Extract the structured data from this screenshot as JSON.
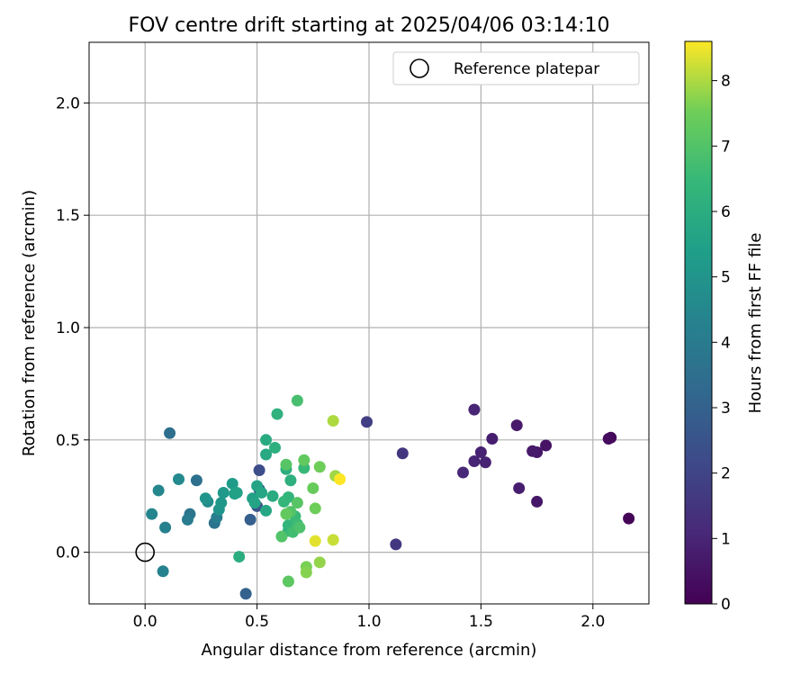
{
  "chart_data": {
    "type": "scatter",
    "title": "FOV centre drift starting at 2025/04/06 03:14:10",
    "xlabel": "Angular distance from reference (arcmin)",
    "ylabel": "Rotation from reference (arcmin)",
    "xlim": [
      -0.25,
      2.25
    ],
    "ylim": [
      -0.23,
      2.27
    ],
    "xticks": [
      {
        "value": 0.0,
        "label": "0.0"
      },
      {
        "value": 0.5,
        "label": "0.5"
      },
      {
        "value": 1.0,
        "label": "1.0"
      },
      {
        "value": 1.5,
        "label": "1.5"
      },
      {
        "value": 2.0,
        "label": "2.0"
      }
    ],
    "yticks": [
      {
        "value": 0.0,
        "label": "0.0"
      },
      {
        "value": 0.5,
        "label": "0.5"
      },
      {
        "value": 1.0,
        "label": "1.0"
      },
      {
        "value": 1.5,
        "label": "1.5"
      },
      {
        "value": 2.0,
        "label": "2.0"
      }
    ],
    "grid": true,
    "legend": {
      "position": "top-right",
      "entries": [
        {
          "label": "Reference platepar",
          "marker": "open-circle"
        }
      ]
    },
    "reference_point": {
      "x": 0.0,
      "y": 0.0
    },
    "colorbar": {
      "label": "Hours from first FF file",
      "colormap": "viridis",
      "range": [
        0,
        8.6
      ],
      "ticks": [
        {
          "value": 0,
          "label": "0"
        },
        {
          "value": 1,
          "label": "1"
        },
        {
          "value": 2,
          "label": "2"
        },
        {
          "value": 3,
          "label": "3"
        },
        {
          "value": 4,
          "label": "4"
        },
        {
          "value": 5,
          "label": "5"
        },
        {
          "value": 6,
          "label": "6"
        },
        {
          "value": 7,
          "label": "7"
        },
        {
          "value": 8,
          "label": "8"
        }
      ]
    },
    "points": [
      {
        "x": 2.16,
        "y": 0.15,
        "h": 0.1
      },
      {
        "x": 2.08,
        "y": 0.51,
        "h": 0.2
      },
      {
        "x": 2.07,
        "y": 0.505,
        "h": 0.3
      },
      {
        "x": 1.79,
        "y": 0.475,
        "h": 0.5
      },
      {
        "x": 1.75,
        "y": 0.445,
        "h": 0.6
      },
      {
        "x": 1.73,
        "y": 0.45,
        "h": 0.7
      },
      {
        "x": 1.75,
        "y": 0.225,
        "h": 0.6
      },
      {
        "x": 1.66,
        "y": 0.565,
        "h": 0.7
      },
      {
        "x": 1.67,
        "y": 0.285,
        "h": 0.8
      },
      {
        "x": 1.55,
        "y": 0.505,
        "h": 0.8
      },
      {
        "x": 1.5,
        "y": 0.445,
        "h": 0.9
      },
      {
        "x": 1.52,
        "y": 0.4,
        "h": 0.9
      },
      {
        "x": 1.47,
        "y": 0.635,
        "h": 1.0
      },
      {
        "x": 1.47,
        "y": 0.405,
        "h": 1.0
      },
      {
        "x": 1.42,
        "y": 0.355,
        "h": 1.1
      },
      {
        "x": 1.15,
        "y": 0.44,
        "h": 1.5
      },
      {
        "x": 1.12,
        "y": 0.035,
        "h": 1.6
      },
      {
        "x": 0.99,
        "y": 0.58,
        "h": 1.8
      },
      {
        "x": 0.51,
        "y": 0.365,
        "h": 2.3
      },
      {
        "x": 0.51,
        "y": 0.28,
        "h": 2.5
      },
      {
        "x": 0.5,
        "y": 0.205,
        "h": 2.6
      },
      {
        "x": 0.47,
        "y": 0.145,
        "h": 2.9
      },
      {
        "x": 0.45,
        "y": -0.185,
        "h": 3.0
      },
      {
        "x": 0.11,
        "y": 0.53,
        "h": 3.5
      },
      {
        "x": 0.23,
        "y": 0.32,
        "h": 3.6
      },
      {
        "x": 0.31,
        "y": 0.13,
        "h": 3.7
      },
      {
        "x": 0.2,
        "y": 0.17,
        "h": 3.8
      },
      {
        "x": 0.19,
        "y": 0.145,
        "h": 4.0
      },
      {
        "x": 0.32,
        "y": 0.155,
        "h": 4.1
      },
      {
        "x": 0.09,
        "y": 0.11,
        "h": 4.2
      },
      {
        "x": 0.08,
        "y": -0.085,
        "h": 4.3
      },
      {
        "x": 0.03,
        "y": 0.17,
        "h": 4.4
      },
      {
        "x": 0.06,
        "y": 0.275,
        "h": 4.5
      },
      {
        "x": 0.15,
        "y": 0.325,
        "h": 4.6
      },
      {
        "x": 0.28,
        "y": 0.225,
        "h": 4.7
      },
      {
        "x": 0.27,
        "y": 0.24,
        "h": 5.0
      },
      {
        "x": 0.33,
        "y": 0.19,
        "h": 5.0
      },
      {
        "x": 0.34,
        "y": 0.22,
        "h": 5.1
      },
      {
        "x": 0.35,
        "y": 0.265,
        "h": 5.2
      },
      {
        "x": 0.39,
        "y": 0.305,
        "h": 5.3
      },
      {
        "x": 0.4,
        "y": 0.26,
        "h": 5.4
      },
      {
        "x": 0.41,
        "y": 0.265,
        "h": 5.5
      },
      {
        "x": 0.48,
        "y": 0.24,
        "h": 5.5
      },
      {
        "x": 0.49,
        "y": 0.22,
        "h": 5.6
      },
      {
        "x": 0.5,
        "y": 0.295,
        "h": 5.6
      },
      {
        "x": 0.52,
        "y": 0.265,
        "h": 5.7
      },
      {
        "x": 0.54,
        "y": 0.185,
        "h": 5.7
      },
      {
        "x": 0.54,
        "y": 0.435,
        "h": 5.8
      },
      {
        "x": 0.54,
        "y": 0.5,
        "h": 5.9
      },
      {
        "x": 0.57,
        "y": 0.25,
        "h": 5.9
      },
      {
        "x": 0.42,
        "y": -0.02,
        "h": 6.0
      },
      {
        "x": 0.58,
        "y": 0.465,
        "h": 6.1
      },
      {
        "x": 0.59,
        "y": 0.615,
        "h": 6.2
      },
      {
        "x": 0.63,
        "y": 0.37,
        "h": 6.0
      },
      {
        "x": 0.65,
        "y": 0.32,
        "h": 6.1
      },
      {
        "x": 0.64,
        "y": 0.095,
        "h": 6.2
      },
      {
        "x": 0.64,
        "y": 0.12,
        "h": 6.3
      },
      {
        "x": 0.64,
        "y": 0.245,
        "h": 6.3
      },
      {
        "x": 0.62,
        "y": 0.225,
        "h": 6.4
      },
      {
        "x": 0.67,
        "y": 0.16,
        "h": 6.5
      },
      {
        "x": 0.68,
        "y": 0.125,
        "h": 6.6
      },
      {
        "x": 0.66,
        "y": 0.09,
        "h": 6.7
      },
      {
        "x": 0.71,
        "y": 0.375,
        "h": 6.5
      },
      {
        "x": 0.68,
        "y": 0.675,
        "h": 6.8
      },
      {
        "x": 0.69,
        "y": 0.11,
        "h": 6.9
      },
      {
        "x": 0.61,
        "y": 0.07,
        "h": 7.0
      },
      {
        "x": 0.65,
        "y": 0.18,
        "h": 7.0
      },
      {
        "x": 0.63,
        "y": 0.39,
        "h": 7.1
      },
      {
        "x": 0.68,
        "y": 0.22,
        "h": 7.1
      },
      {
        "x": 0.64,
        "y": -0.13,
        "h": 7.2
      },
      {
        "x": 0.71,
        "y": 0.41,
        "h": 7.3
      },
      {
        "x": 0.63,
        "y": 0.17,
        "h": 7.3
      },
      {
        "x": 0.75,
        "y": 0.285,
        "h": 7.4
      },
      {
        "x": 0.76,
        "y": 0.195,
        "h": 7.5
      },
      {
        "x": 0.78,
        "y": 0.38,
        "h": 7.5
      },
      {
        "x": 0.72,
        "y": -0.065,
        "h": 7.6
      },
      {
        "x": 0.72,
        "y": -0.09,
        "h": 7.7
      },
      {
        "x": 0.78,
        "y": -0.045,
        "h": 7.8
      },
      {
        "x": 0.85,
        "y": 0.34,
        "h": 7.9
      },
      {
        "x": 0.84,
        "y": 0.585,
        "h": 8.0
      },
      {
        "x": 0.84,
        "y": 0.055,
        "h": 8.2
      },
      {
        "x": 0.76,
        "y": 0.05,
        "h": 8.4
      },
      {
        "x": 0.87,
        "y": 0.325,
        "h": 8.6
      }
    ]
  }
}
